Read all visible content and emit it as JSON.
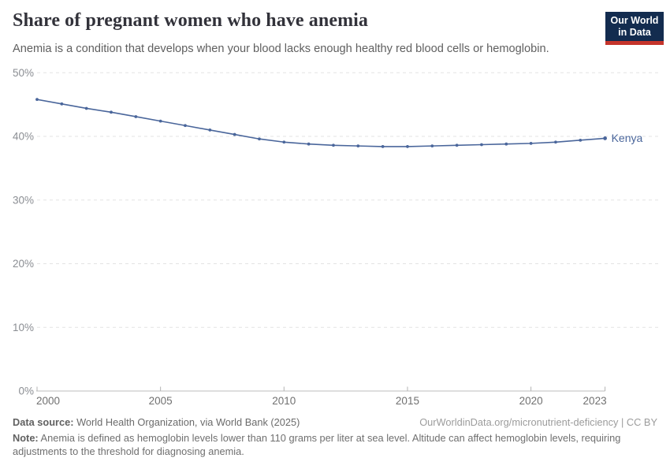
{
  "header": {
    "title": "Share of pregnant women who have anemia",
    "subtitle": "Anemia is a condition that develops when your blood lacks enough healthy red blood cells or hemoglobin.",
    "logo": {
      "line1": "Our World",
      "line2": "in Data"
    }
  },
  "chart_data": {
    "type": "line",
    "title": "Share of pregnant women who have anemia",
    "series": [
      {
        "name": "Kenya",
        "x": [
          2000,
          2001,
          2002,
          2003,
          2004,
          2005,
          2006,
          2007,
          2008,
          2009,
          2010,
          2011,
          2012,
          2013,
          2014,
          2015,
          2016,
          2017,
          2018,
          2019,
          2020,
          2021,
          2022,
          2023
        ],
        "values": [
          45.8,
          45.1,
          44.4,
          43.8,
          43.1,
          42.4,
          41.7,
          41.0,
          40.3,
          39.6,
          39.1,
          38.8,
          38.6,
          38.5,
          38.4,
          38.4,
          38.5,
          38.6,
          38.7,
          38.8,
          38.9,
          39.1,
          39.4,
          39.7
        ]
      }
    ],
    "xlabel": "",
    "ylabel": "",
    "ylim": [
      0,
      50
    ],
    "yticks": [
      0,
      10,
      20,
      30,
      40,
      50
    ],
    "ytick_suffix": "%",
    "xticks": [
      2000,
      2005,
      2010,
      2015,
      2020,
      2023
    ],
    "grid": "horizontal-dashed",
    "legend_position": "end-of-line",
    "entity_label": "Kenya"
  },
  "colors": {
    "line": "#4a669b",
    "logo_bg": "#132c4f",
    "logo_red": "#c5342b"
  },
  "footer": {
    "datasource_label": "Data source:",
    "datasource_text": " World Health Organization, via World Bank (2025)",
    "link_text": "OurWorldinData.org/micronutrient-deficiency | CC BY",
    "note_label": "Note:",
    "note_text": " Anemia is defined as hemoglobin levels lower than 110 grams per liter at sea level. Altitude can affect hemoglobin levels, requiring adjustments to the threshold for diagnosing anemia."
  }
}
